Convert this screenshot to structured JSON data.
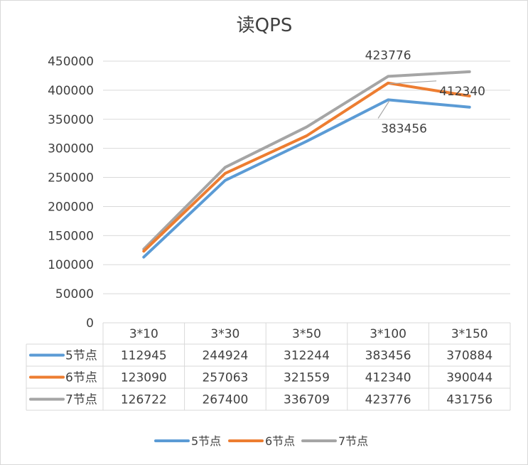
{
  "chart_data": {
    "type": "line",
    "title": "读QPS",
    "categories": [
      "3*10",
      "3*30",
      "3*50",
      "3*100",
      "3*150"
    ],
    "series": [
      {
        "name": "5节点",
        "color": "#5b9bd5",
        "values": [
          112945,
          244924,
          312244,
          383456,
          370884
        ]
      },
      {
        "name": "6节点",
        "color": "#ed7d31",
        "values": [
          123090,
          257063,
          321559,
          412340,
          390044
        ]
      },
      {
        "name": "7节点",
        "color": "#a5a5a5",
        "values": [
          126722,
          267400,
          336709,
          423776,
          431756
        ]
      }
    ],
    "ylim": [
      0,
      450000
    ],
    "yticks": [
      "0",
      "50000",
      "100000",
      "150000",
      "200000",
      "250000",
      "300000",
      "350000",
      "400000",
      "450000"
    ],
    "grid": true,
    "legend": "bottom",
    "data_table": true,
    "data_labels": [
      {
        "series": 2,
        "index": 3,
        "text": "423776"
      },
      {
        "series": 1,
        "index": 3,
        "text": "412340"
      },
      {
        "series": 0,
        "index": 3,
        "text": "383456"
      }
    ]
  }
}
